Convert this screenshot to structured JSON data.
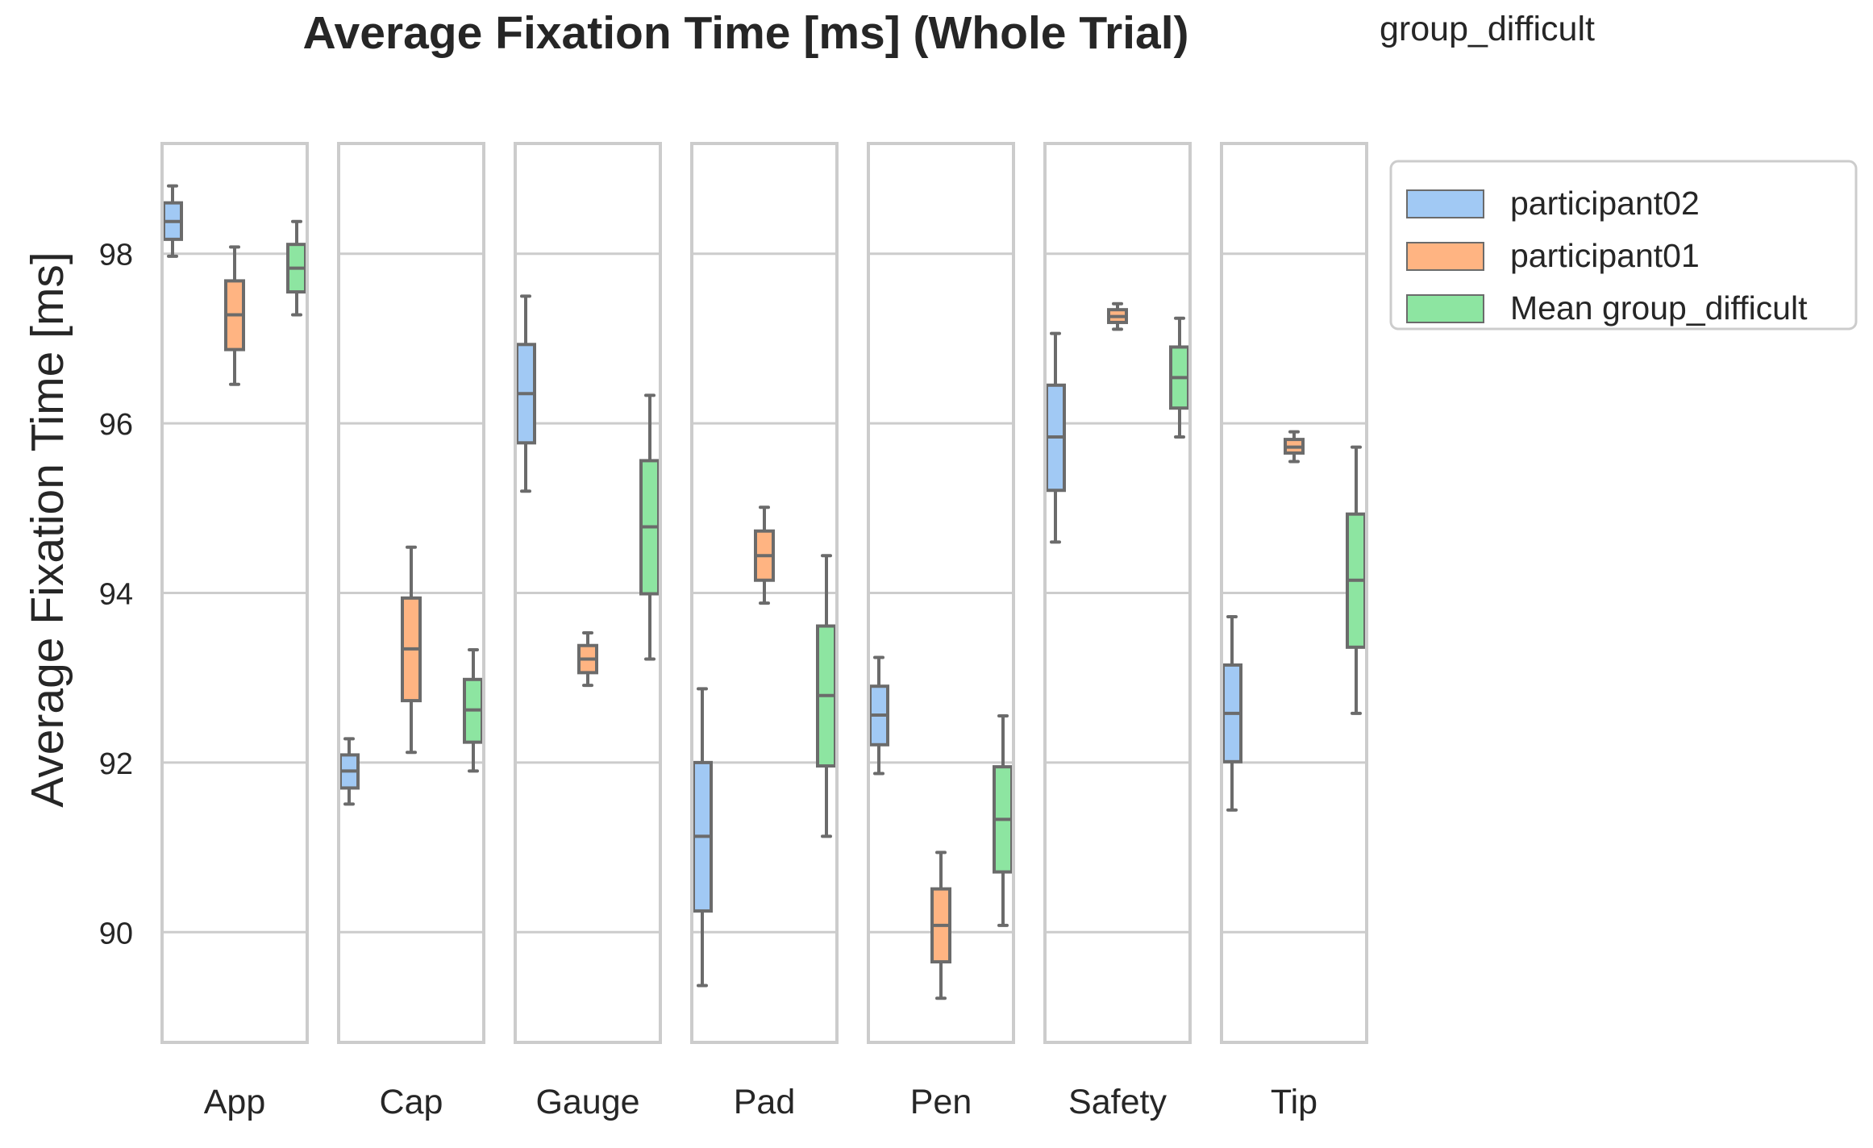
{
  "chart_data": {
    "type": "box",
    "title": "Average Fixation Time [ms] (Whole Trial)",
    "legend_title": "group_difficult",
    "ylabel": "Average Fixation Time [ms]",
    "xlabel": "",
    "ylim": [
      88.7,
      99.3
    ],
    "yticks": [
      90,
      92,
      94,
      96,
      98
    ],
    "grid": true,
    "legend_position": "right, outside",
    "categories": [
      "App",
      "Cap",
      "Gauge",
      "Pad",
      "Pen",
      "Safety",
      "Tip"
    ],
    "series": [
      {
        "name": "participant02",
        "color": "#a1c9f4",
        "boxes": [
          {
            "whislo": 97.97,
            "q1": 98.17,
            "med": 98.38,
            "q3": 98.6,
            "whishi": 98.8
          },
          {
            "whislo": 91.51,
            "q1": 91.7,
            "med": 91.9,
            "q3": 92.09,
            "whishi": 92.28
          },
          {
            "whislo": 95.2,
            "q1": 95.77,
            "med": 96.35,
            "q3": 96.93,
            "whishi": 97.5
          },
          {
            "whislo": 89.37,
            "q1": 90.25,
            "med": 91.13,
            "q3": 92.0,
            "whishi": 92.87
          },
          {
            "whislo": 91.87,
            "q1": 92.21,
            "med": 92.56,
            "q3": 92.9,
            "whishi": 93.24
          },
          {
            "whislo": 94.6,
            "q1": 95.21,
            "med": 95.84,
            "q3": 96.45,
            "whishi": 97.06
          },
          {
            "whislo": 91.44,
            "q1": 92.01,
            "med": 92.58,
            "q3": 93.15,
            "whishi": 93.72
          }
        ]
      },
      {
        "name": "participant01",
        "color": "#ffb482",
        "boxes": [
          {
            "whislo": 96.46,
            "q1": 96.87,
            "med": 97.28,
            "q3": 97.68,
            "whishi": 98.08
          },
          {
            "whislo": 92.12,
            "q1": 92.73,
            "med": 93.34,
            "q3": 93.94,
            "whishi": 94.54
          },
          {
            "whislo": 92.91,
            "q1": 93.06,
            "med": 93.22,
            "q3": 93.38,
            "whishi": 93.53
          },
          {
            "whislo": 93.88,
            "q1": 94.15,
            "med": 94.44,
            "q3": 94.73,
            "whishi": 95.01
          },
          {
            "whislo": 89.22,
            "q1": 89.65,
            "med": 90.08,
            "q3": 90.51,
            "whishi": 90.94
          },
          {
            "whislo": 97.11,
            "q1": 97.19,
            "med": 97.26,
            "q3": 97.34,
            "whishi": 97.41
          },
          {
            "whislo": 95.55,
            "q1": 95.65,
            "med": 95.72,
            "q3": 95.81,
            "whishi": 95.9
          }
        ]
      },
      {
        "name": "Mean group_difficult",
        "color": "#8de5a1",
        "boxes": [
          {
            "whislo": 97.28,
            "q1": 97.55,
            "med": 97.83,
            "q3": 98.11,
            "whishi": 98.38
          },
          {
            "whislo": 91.9,
            "q1": 92.24,
            "med": 92.62,
            "q3": 92.98,
            "whishi": 93.33
          },
          {
            "whislo": 93.22,
            "q1": 93.99,
            "med": 94.78,
            "q3": 95.56,
            "whishi": 96.33
          },
          {
            "whislo": 91.13,
            "q1": 91.96,
            "med": 92.79,
            "q3": 93.61,
            "whishi": 94.44
          },
          {
            "whislo": 90.08,
            "q1": 90.71,
            "med": 91.33,
            "q3": 91.95,
            "whishi": 92.55
          },
          {
            "whislo": 95.84,
            "q1": 96.18,
            "med": 96.54,
            "q3": 96.9,
            "whishi": 97.24
          },
          {
            "whislo": 92.58,
            "q1": 93.36,
            "med": 94.15,
            "q3": 94.93,
            "whishi": 95.72
          }
        ]
      }
    ]
  }
}
